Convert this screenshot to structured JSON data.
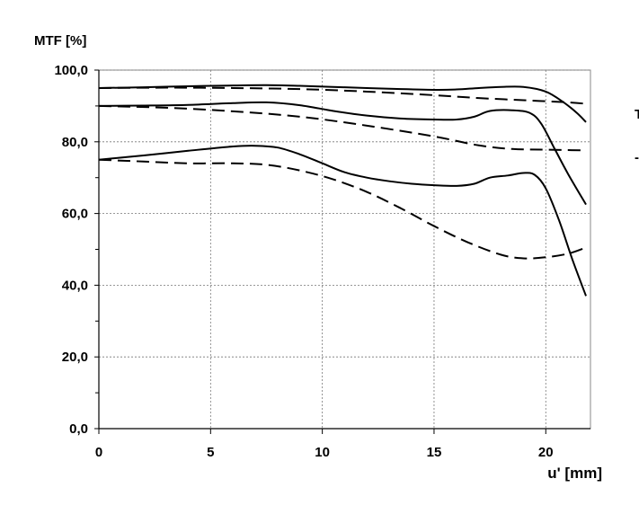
{
  "chart_data": {
    "type": "line",
    "title": "",
    "ylabel": "MTF [%]",
    "xlabel": "u' [mm]",
    "xlim": [
      0,
      22
    ],
    "ylim": [
      0,
      100
    ],
    "xticks": [
      0,
      5,
      10,
      15,
      20
    ],
    "yticks": [
      0,
      20,
      40,
      60,
      80,
      100
    ],
    "xtick_labels": [
      "0",
      "5",
      "10",
      "15",
      "20"
    ],
    "ytick_labels": [
      "0,0",
      "20,0",
      "40,0",
      "60,0",
      "80,0",
      "100,0"
    ],
    "grid": true,
    "legend_glyphs": [
      "T",
      "-"
    ],
    "series": [
      {
        "style": "solid",
        "points": [
          [
            0,
            95
          ],
          [
            2,
            95.2
          ],
          [
            4,
            95.5
          ],
          [
            6,
            95.7
          ],
          [
            7.5,
            95.8
          ],
          [
            9,
            95.6
          ],
          [
            11,
            95.2
          ],
          [
            13,
            94.8
          ],
          [
            15,
            94.5
          ],
          [
            16,
            94.6
          ],
          [
            17,
            95
          ],
          [
            18,
            95.3
          ],
          [
            19,
            95.3
          ],
          [
            20,
            94
          ],
          [
            20.8,
            91
          ],
          [
            21.4,
            88
          ],
          [
            21.8,
            85.5
          ]
        ]
      },
      {
        "style": "dashed",
        "points": [
          [
            0,
            95
          ],
          [
            3,
            95.1
          ],
          [
            6,
            95
          ],
          [
            9,
            94.7
          ],
          [
            12,
            94
          ],
          [
            15,
            93
          ],
          [
            17,
            92.2
          ],
          [
            19,
            91.6
          ],
          [
            21,
            91
          ],
          [
            21.8,
            90.6
          ]
        ]
      },
      {
        "style": "solid",
        "points": [
          [
            0,
            90
          ],
          [
            2,
            90.1
          ],
          [
            4,
            90.3
          ],
          [
            6,
            90.8
          ],
          [
            7.5,
            91
          ],
          [
            9,
            90.2
          ],
          [
            10.5,
            88.6
          ],
          [
            12,
            87.3
          ],
          [
            13.5,
            86.5
          ],
          [
            15,
            86.2
          ],
          [
            16,
            86.2
          ],
          [
            16.8,
            87
          ],
          [
            17.5,
            88.6
          ],
          [
            18.5,
            88.8
          ],
          [
            19.3,
            88
          ],
          [
            19.8,
            85
          ],
          [
            20.4,
            78
          ],
          [
            21,
            71
          ],
          [
            21.8,
            62.5
          ]
        ]
      },
      {
        "style": "dashed",
        "points": [
          [
            0,
            90
          ],
          [
            3,
            89.5
          ],
          [
            6,
            88.5
          ],
          [
            9,
            87
          ],
          [
            12,
            84.5
          ],
          [
            15,
            81.5
          ],
          [
            17,
            79
          ],
          [
            18.5,
            78
          ],
          [
            20,
            77.8
          ],
          [
            21.8,
            77.6
          ]
        ]
      },
      {
        "style": "solid",
        "points": [
          [
            0,
            75
          ],
          [
            2,
            76.2
          ],
          [
            4,
            77.5
          ],
          [
            6,
            78.7
          ],
          [
            7,
            78.9
          ],
          [
            8,
            78.4
          ],
          [
            9,
            76.5
          ],
          [
            10,
            74
          ],
          [
            11,
            71.5
          ],
          [
            12,
            70
          ],
          [
            13,
            69
          ],
          [
            14,
            68.3
          ],
          [
            15,
            67.9
          ],
          [
            16,
            67.7
          ],
          [
            16.8,
            68.3
          ],
          [
            17.5,
            70
          ],
          [
            18.3,
            70.6
          ],
          [
            19,
            71.3
          ],
          [
            19.5,
            70.8
          ],
          [
            20,
            67
          ],
          [
            20.6,
            58
          ],
          [
            21.2,
            47
          ],
          [
            21.8,
            37
          ]
        ]
      },
      {
        "style": "dashed",
        "points": [
          [
            0,
            75
          ],
          [
            2,
            74.5
          ],
          [
            4,
            74
          ],
          [
            6,
            74
          ],
          [
            7.5,
            73.6
          ],
          [
            9,
            72
          ],
          [
            10.5,
            69.5
          ],
          [
            12,
            66
          ],
          [
            13.5,
            61.5
          ],
          [
            15,
            56.5
          ],
          [
            16.5,
            52
          ],
          [
            18,
            48.5
          ],
          [
            19,
            47.5
          ],
          [
            20,
            47.8
          ],
          [
            21,
            48.8
          ],
          [
            21.8,
            50.5
          ]
        ]
      }
    ]
  }
}
